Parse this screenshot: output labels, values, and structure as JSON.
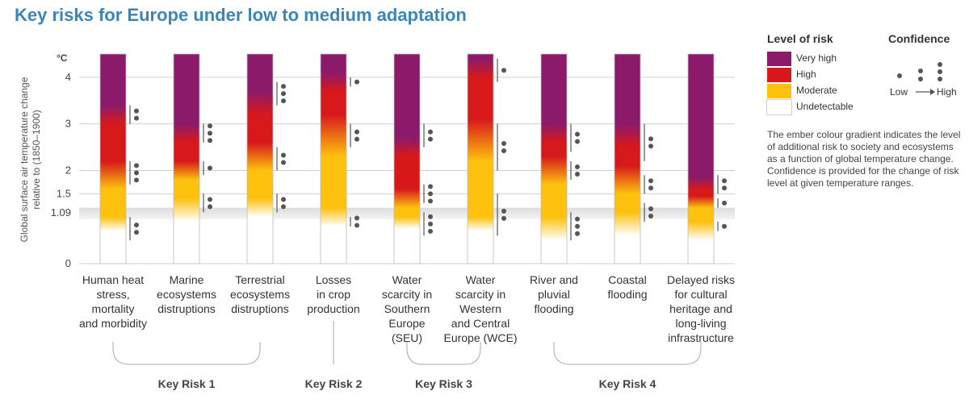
{
  "title": "Key risks for Europe under low to medium adaptation",
  "chart_data": {
    "type": "ember",
    "ylabel": "Global surface air temperature change relative to (1850–1900)",
    "yunit": "°C",
    "ylim": [
      0,
      4.5
    ],
    "yticks": [
      {
        "value": 0,
        "label": "0"
      },
      {
        "value": 1.09,
        "label": "1.09"
      },
      {
        "value": 1.5,
        "label": "1.5"
      },
      {
        "value": 2,
        "label": "2"
      },
      {
        "value": 3,
        "label": "3"
      },
      {
        "value": 4,
        "label": "4"
      }
    ],
    "observed_band": [
      0.95,
      1.2
    ],
    "colors": {
      "very_high": "#8b1a6b",
      "high": "#d7191c",
      "moderate": "#fdc10e",
      "undetectable": "#ffffff"
    },
    "embers": [
      {
        "label": [
          "Human heat",
          "stress,",
          "mortality",
          "and morbidity"
        ],
        "stops": [
          {
            "t": 0.7,
            "c": "undetectable"
          },
          {
            "t": 1.0,
            "c": "moderate"
          },
          {
            "t": 1.6,
            "c": "moderate"
          },
          {
            "t": 2.2,
            "c": "high"
          },
          {
            "t": 3.0,
            "c": "high"
          },
          {
            "t": 3.4,
            "c": "very_high"
          }
        ],
        "confidence": [
          {
            "from": 0.5,
            "to": 1.0,
            "dots": 2
          },
          {
            "from": 1.7,
            "to": 2.2,
            "dots": 3
          },
          {
            "from": 3.0,
            "to": 3.4,
            "dots": 2
          }
        ]
      },
      {
        "label": [
          "Marine",
          "ecosystems",
          "distruptions"
        ],
        "stops": [
          {
            "t": 0.9,
            "c": "undetectable"
          },
          {
            "t": 1.4,
            "c": "moderate"
          },
          {
            "t": 1.8,
            "c": "moderate"
          },
          {
            "t": 2.2,
            "c": "high"
          },
          {
            "t": 2.6,
            "c": "high"
          },
          {
            "t": 3.0,
            "c": "very_high"
          }
        ],
        "confidence": [
          {
            "from": 1.1,
            "to": 1.5,
            "dots": 2
          },
          {
            "from": 1.9,
            "to": 2.2,
            "dots": 1
          },
          {
            "from": 2.6,
            "to": 3.0,
            "dots": 3
          }
        ]
      },
      {
        "label": [
          "Terrestrial",
          "ecosystems",
          "distruptions"
        ],
        "stops": [
          {
            "t": 1.0,
            "c": "undetectable"
          },
          {
            "t": 1.4,
            "c": "moderate"
          },
          {
            "t": 2.0,
            "c": "moderate"
          },
          {
            "t": 2.6,
            "c": "high"
          },
          {
            "t": 3.2,
            "c": "high"
          },
          {
            "t": 3.7,
            "c": "very_high"
          }
        ],
        "confidence": [
          {
            "from": 1.1,
            "to": 1.5,
            "dots": 2
          },
          {
            "from": 2.0,
            "to": 2.5,
            "dots": 2
          },
          {
            "from": 3.4,
            "to": 3.9,
            "dots": 3
          }
        ]
      },
      {
        "label": [
          "Losses",
          "in crop",
          "production"
        ],
        "stops": [
          {
            "t": 0.8,
            "c": "undetectable"
          },
          {
            "t": 1.2,
            "c": "moderate"
          },
          {
            "t": 2.3,
            "c": "moderate"
          },
          {
            "t": 3.2,
            "c": "high"
          },
          {
            "t": 3.7,
            "c": "high"
          },
          {
            "t": 4.1,
            "c": "very_high"
          }
        ],
        "confidence": [
          {
            "from": 0.8,
            "to": 1.0,
            "dots": 2
          },
          {
            "from": 2.5,
            "to": 3.0,
            "dots": 2
          },
          {
            "from": 3.8,
            "to": 4.0,
            "dots": 1
          }
        ]
      },
      {
        "label": [
          "Water",
          "scarcity in",
          "Southern",
          "Europe",
          "(SEU)"
        ],
        "stops": [
          {
            "t": 0.75,
            "c": "undetectable"
          },
          {
            "t": 1.0,
            "c": "moderate"
          },
          {
            "t": 1.2,
            "c": "moderate"
          },
          {
            "t": 1.6,
            "c": "high"
          },
          {
            "t": 2.3,
            "c": "high"
          },
          {
            "t": 2.7,
            "c": "very_high"
          }
        ],
        "confidence": [
          {
            "from": 0.6,
            "to": 1.1,
            "dots": 3
          },
          {
            "from": 1.3,
            "to": 1.7,
            "dots": 3
          },
          {
            "from": 2.5,
            "to": 3.0,
            "dots": 2
          }
        ]
      },
      {
        "label": [
          "Water",
          "scarcity in",
          "Western",
          "and Central",
          "Europe (WCE)"
        ],
        "stops": [
          {
            "t": 0.7,
            "c": "undetectable"
          },
          {
            "t": 1.0,
            "c": "moderate"
          },
          {
            "t": 2.2,
            "c": "moderate"
          },
          {
            "t": 3.1,
            "c": "high"
          },
          {
            "t": 4.0,
            "c": "high"
          },
          {
            "t": 4.4,
            "c": "very_high"
          }
        ],
        "confidence": [
          {
            "from": 0.6,
            "to": 1.5,
            "dots": 2
          },
          {
            "from": 2.0,
            "to": 3.0,
            "dots": 2
          },
          {
            "from": 3.9,
            "to": 4.4,
            "dots": 1
          }
        ]
      },
      {
        "label": [
          "River and",
          "pluvial",
          "flooding"
        ],
        "stops": [
          {
            "t": 0.5,
            "c": "undetectable"
          },
          {
            "t": 1.0,
            "c": "moderate"
          },
          {
            "t": 1.7,
            "c": "moderate"
          },
          {
            "t": 2.3,
            "c": "high"
          },
          {
            "t": 2.6,
            "c": "high"
          },
          {
            "t": 3.0,
            "c": "very_high"
          }
        ],
        "confidence": [
          {
            "from": 0.5,
            "to": 1.1,
            "dots": 3
          },
          {
            "from": 1.8,
            "to": 2.2,
            "dots": 2
          },
          {
            "from": 2.4,
            "to": 3.0,
            "dots": 2
          }
        ]
      },
      {
        "label": [
          "Coastal",
          "flooding"
        ],
        "stops": [
          {
            "t": 0.6,
            "c": "undetectable"
          },
          {
            "t": 1.1,
            "c": "moderate"
          },
          {
            "t": 1.5,
            "c": "moderate"
          },
          {
            "t": 2.1,
            "c": "high"
          },
          {
            "t": 2.5,
            "c": "high"
          },
          {
            "t": 3.0,
            "c": "very_high"
          }
        ],
        "confidence": [
          {
            "from": 0.9,
            "to": 1.3,
            "dots": 2
          },
          {
            "from": 1.5,
            "to": 1.9,
            "dots": 2
          },
          {
            "from": 2.2,
            "to": 3.0,
            "dots": 2
          }
        ]
      },
      {
        "label": [
          "Delayed risks",
          "for cultural",
          "heritage and",
          "long-living",
          "infrastructure"
        ],
        "stops": [
          {
            "t": 0.5,
            "c": "undetectable"
          },
          {
            "t": 0.9,
            "c": "moderate"
          },
          {
            "t": 1.2,
            "c": "moderate"
          },
          {
            "t": 1.45,
            "c": "high"
          },
          {
            "t": 1.6,
            "c": "high"
          },
          {
            "t": 1.85,
            "c": "very_high"
          }
        ],
        "confidence": [
          {
            "from": 0.7,
            "to": 0.9,
            "dots": 1
          },
          {
            "from": 1.2,
            "to": 1.4,
            "dots": 1
          },
          {
            "from": 1.5,
            "to": 1.9,
            "dots": 2
          }
        ]
      }
    ],
    "groups": [
      {
        "label": "Key Risk 1",
        "from": 0,
        "to": 2
      },
      {
        "label": "Key Risk 2",
        "from": 3,
        "to": 3
      },
      {
        "label": "Key Risk 3",
        "from": 4,
        "to": 5
      },
      {
        "label": "Key Risk 4",
        "from": 6,
        "to": 8
      }
    ]
  },
  "legend": {
    "title": "Level of risk",
    "items": [
      {
        "label": "Very high",
        "color": "#8b1a6b"
      },
      {
        "label": "High",
        "color": "#d7191c"
      },
      {
        "label": "Moderate",
        "color": "#fdc10e"
      },
      {
        "label": "Undetectable",
        "color": "#ffffff"
      }
    ],
    "confidence_title": "Confidence",
    "confidence_low": "Low",
    "confidence_high": "High",
    "note": "The ember colour gradient indicates the level of additional risk to society and ecosystems as a function of global temperature change. Confidence is provided for the change of risk level at given temperature ranges."
  }
}
